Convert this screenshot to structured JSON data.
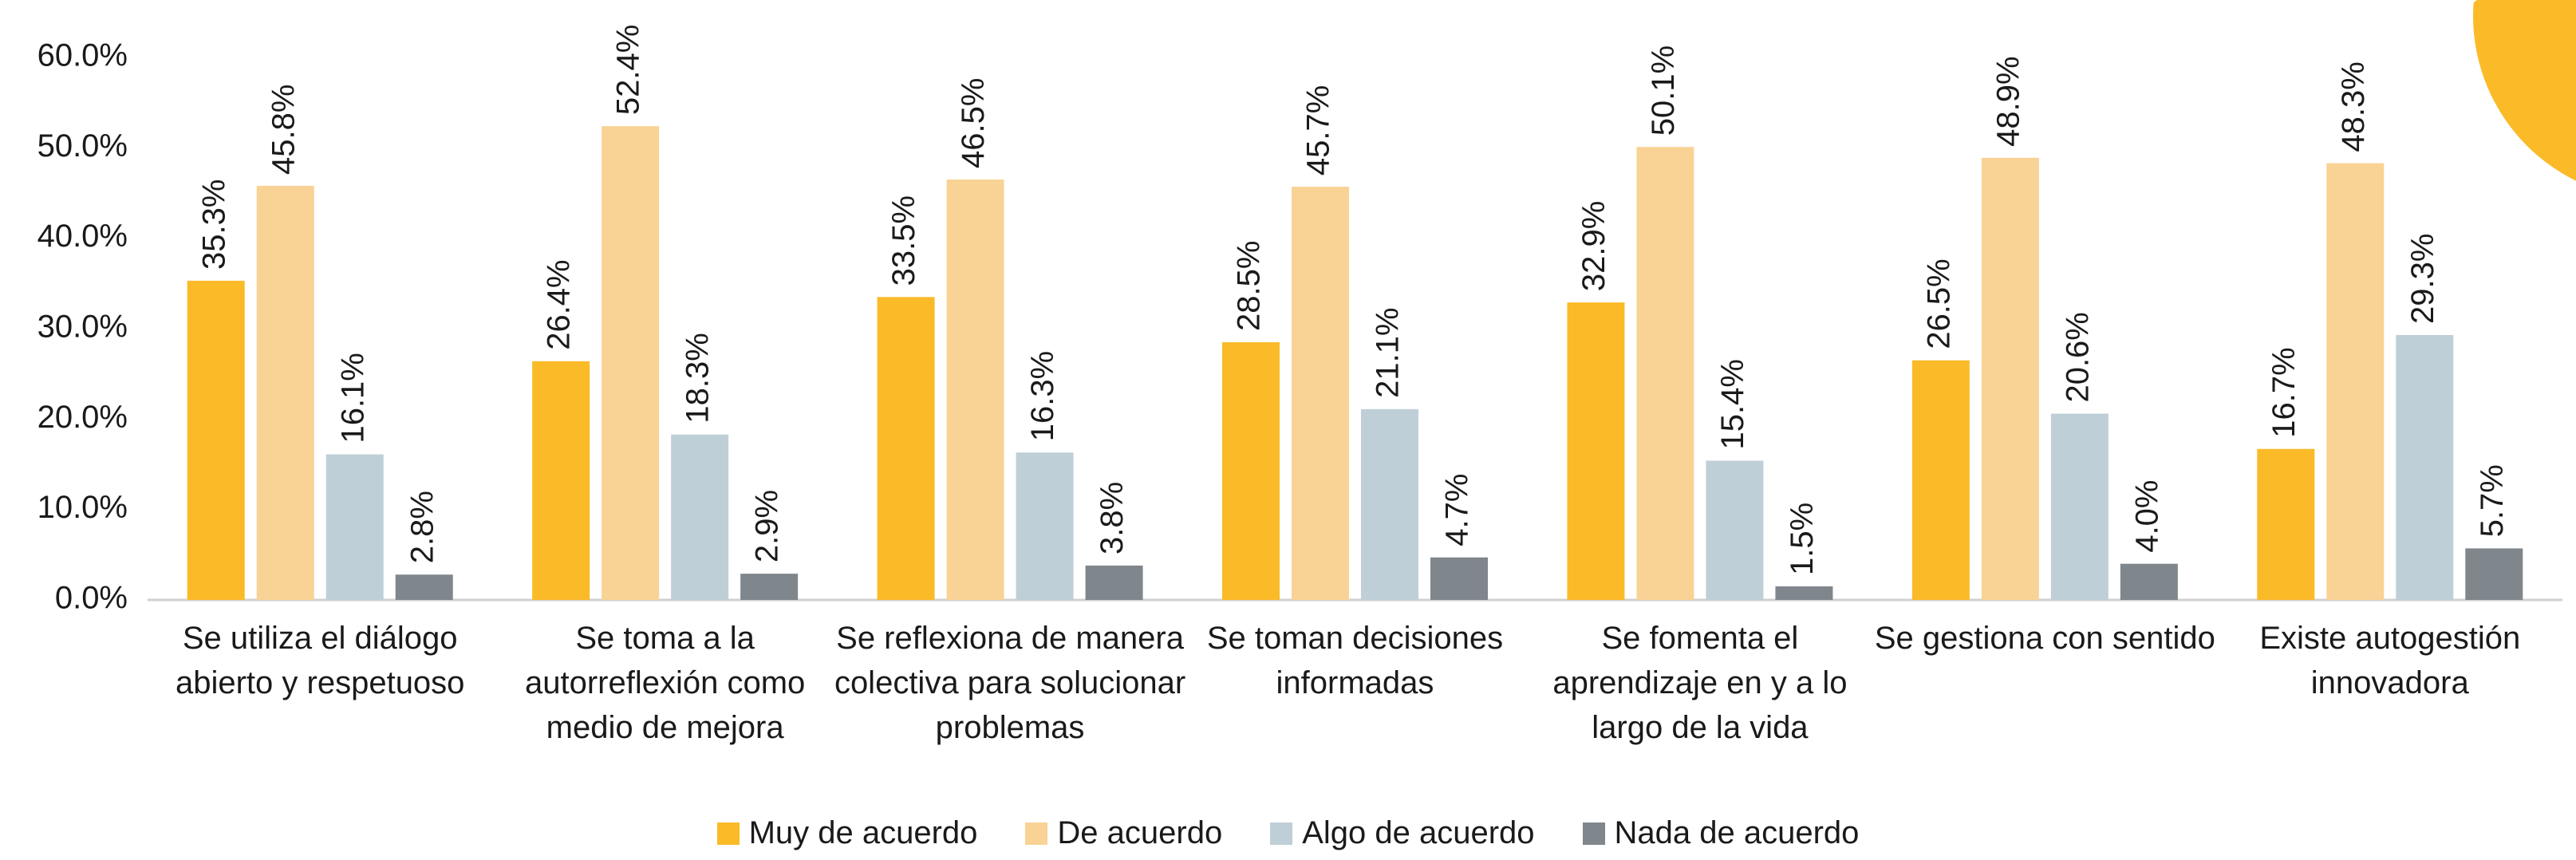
{
  "chart_data": {
    "type": "bar",
    "categories": [
      "Se utiliza el diálogo abierto y respetuoso",
      "Se toma a la autorreflexión como medio de mejora",
      "Se reflexiona de manera colectiva para solucionar problemas",
      "Se toman decisiones informadas",
      "Se fomenta el aprendizaje en y a lo largo de la vida",
      "Se gestiona con sentido",
      "Existe autogestión innovadora"
    ],
    "series": [
      {
        "name": "Muy de acuerdo",
        "color": "#FBBA28",
        "values": [
          35.3,
          26.4,
          33.5,
          28.5,
          32.9,
          26.5,
          16.7
        ],
        "value_labels": [
          "35.3%",
          "26.4%",
          "33.5%",
          "28.5%",
          "32.9%",
          "26.5%",
          "16.7%"
        ]
      },
      {
        "name": "De acuerdo",
        "color": "#F9D395",
        "values": [
          45.8,
          52.4,
          46.5,
          45.7,
          50.1,
          48.9,
          48.3
        ],
        "value_labels": [
          "45.8%",
          "52.4%",
          "46.5%",
          "45.7%",
          "50.1%",
          "48.9%",
          "48.3%"
        ]
      },
      {
        "name": "Algo de acuerdo",
        "color": "#BFCFD8",
        "values": [
          16.1,
          18.3,
          16.3,
          21.1,
          15.4,
          20.6,
          29.3
        ],
        "value_labels": [
          "16.1%",
          "18.3%",
          "16.3%",
          "21.1%",
          "15.4%",
          "20.6%",
          "29.3%"
        ]
      },
      {
        "name": "Nada de acuerdo",
        "color": "#7F868C",
        "values": [
          2.8,
          2.9,
          3.8,
          4.7,
          1.5,
          4.0,
          5.7
        ],
        "value_labels": [
          "2.8%",
          "2.9%",
          "3.8%",
          "4.7%",
          "1.5%",
          "4.0%",
          "5.7%"
        ]
      }
    ],
    "ylim": [
      0,
      60
    ],
    "yticks": [
      {
        "value": 0,
        "label": "0.0%"
      },
      {
        "value": 10,
        "label": "10.0%"
      },
      {
        "value": 20,
        "label": "20.0%"
      },
      {
        "value": 30,
        "label": "30.0%"
      },
      {
        "value": 40,
        "label": "40.0%"
      },
      {
        "value": 50,
        "label": "50.0%"
      },
      {
        "value": 60,
        "label": "60.0%"
      }
    ],
    "grid": false,
    "legend": "bottom"
  }
}
